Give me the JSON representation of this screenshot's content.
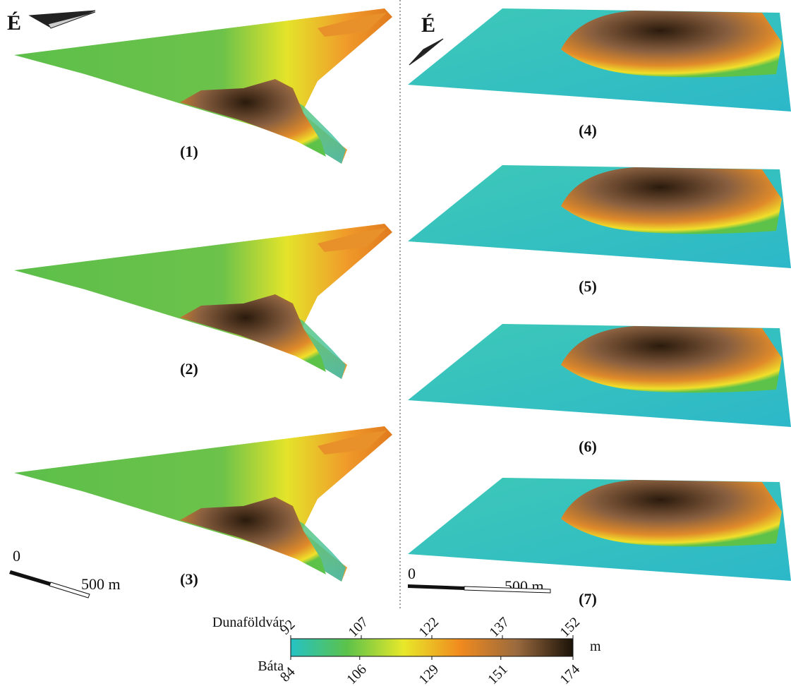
{
  "north_label": "É",
  "panels": [
    {
      "label": "(1)"
    },
    {
      "label": "(2)"
    },
    {
      "label": "(3)"
    },
    {
      "label": "(4)"
    },
    {
      "label": "(5)"
    },
    {
      "label": "(6)"
    },
    {
      "label": "(7)"
    }
  ],
  "scale_bar": {
    "start_label": "0",
    "end_label": "500 m"
  },
  "colorbar": {
    "unit": "m",
    "colors": [
      "#25c2c4",
      "#5cc24a",
      "#e8e82a",
      "#f08a1e",
      "#9a6a3e",
      "#1a1208"
    ],
    "rows": [
      {
        "name": "Dunaföldvár",
        "ticks": [
          92,
          107,
          122,
          137,
          152
        ]
      },
      {
        "name": "Báta",
        "ticks": [
          84,
          106,
          129,
          151,
          174
        ]
      }
    ]
  }
}
